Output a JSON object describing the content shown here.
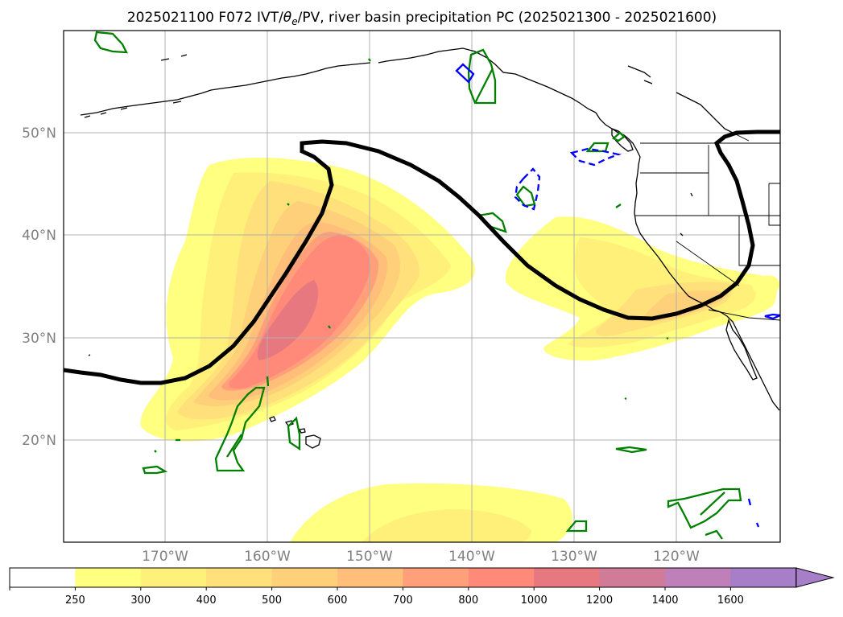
{
  "title": {
    "prefix": "2025021100 F072 IVT/",
    "theta_symbol": "θ",
    "theta_sub": "e",
    "suffix": "/PV, river basin precipitation PC (2025021300 - 2025021600)"
  },
  "map": {
    "lat_labels": [
      "50°N",
      "40°N",
      "30°N",
      "20°N"
    ],
    "lon_labels": [
      "170°W",
      "160°W",
      "150°W",
      "140°W",
      "130°W",
      "120°W"
    ],
    "colors": {
      "land_outline": "#000000",
      "grid": "#b0b0b0",
      "pv_contour": "#000000",
      "precip_positive": "#008000",
      "precip_negative": "#0000ff"
    }
  },
  "colorbar": {
    "levels": [
      "250",
      "300",
      "400",
      "500",
      "600",
      "700",
      "800",
      "1000",
      "1200",
      "1400",
      "1600"
    ],
    "colors": [
      "#ffffff",
      "#ffff80",
      "#fff07a",
      "#ffe07a",
      "#ffd07a",
      "#ffbf7a",
      "#ffa07a",
      "#ff8a7a",
      "#e8787f",
      "#d07b98",
      "#bf7fb8",
      "#a77fc8"
    ]
  }
}
